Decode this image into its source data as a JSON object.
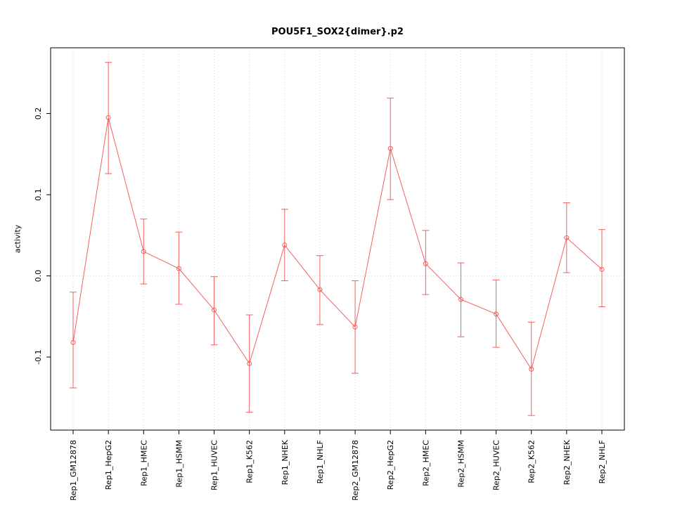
{
  "chart_data": {
    "type": "line",
    "title": "POU5F1_SOX2{dimer}.p2",
    "xlabel": "",
    "ylabel": "activity",
    "categories": [
      "Rep1_GM12878",
      "Rep1_HepG2",
      "Rep1_HMEC",
      "Rep1_HSMM",
      "Rep1_HUVEC",
      "Rep1_K562",
      "Rep1_NHEK",
      "Rep1_NHLF",
      "Rep2_GM12878",
      "Rep2_HepG2",
      "Rep2_HMEC",
      "Rep2_HSMM",
      "Rep2_HUVEC",
      "Rep2_K562",
      "Rep2_NHEK",
      "Rep2_NHLF"
    ],
    "series": [
      {
        "name": "activity",
        "values": [
          -0.082,
          0.195,
          0.03,
          0.009,
          -0.042,
          -0.108,
          0.038,
          -0.017,
          -0.063,
          0.157,
          0.015,
          -0.029,
          -0.047,
          -0.115,
          0.047,
          0.008
        ],
        "lower": [
          -0.138,
          0.126,
          -0.01,
          -0.035,
          -0.085,
          -0.168,
          -0.006,
          -0.06,
          -0.12,
          0.094,
          -0.023,
          -0.075,
          -0.088,
          -0.172,
          0.004,
          -0.038
        ],
        "upper": [
          -0.02,
          0.263,
          0.07,
          0.054,
          -0.001,
          -0.048,
          0.082,
          0.025,
          -0.006,
          0.219,
          0.056,
          0.016,
          -0.005,
          -0.057,
          0.09,
          0.057
        ]
      }
    ],
    "yticks": [
      -0.1,
      0.0,
      0.1,
      0.2
    ],
    "ylim": [
      -0.19,
      0.281
    ],
    "grid": "vertical dotted lines at each category; horizontal dotted line at y=0",
    "legend": "none",
    "marker": "open-circle",
    "error_bars": true,
    "colors": {
      "line": "#f26060",
      "grid": "#d9d9d9",
      "frame": "#000000",
      "text": "#000000"
    }
  }
}
